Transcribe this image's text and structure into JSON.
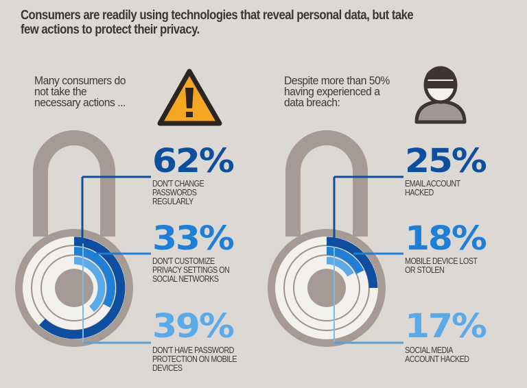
{
  "headline": {
    "line1": "Consumers are readily using technologies that reveal personal data, but take",
    "line2": "few actions to protect their privacy."
  },
  "colors": {
    "background": "#dcd8d3",
    "lock_gray": "#a59a94",
    "dial_white": "#f3f1ee",
    "dark_blue": "#0d4f9e",
    "mid_blue": "#1f7fd6",
    "light_blue": "#5aa9e8",
    "warning_yellow": "#f5a623",
    "text_dark": "#3b3532"
  },
  "left_panel": {
    "intro_lines": [
      "Many consumers do",
      "not take the",
      "necessary actions ..."
    ],
    "icon": "warning-triangle-icon",
    "stats": [
      {
        "value": "62%",
        "caption_lines": [
          "DON'T CHANGE",
          "PASSWORDS",
          "REGULARLY"
        ],
        "color": "#0d4f9e"
      },
      {
        "value": "33%",
        "caption_lines": [
          "DON'T CUSTOMIZE",
          "PRIVACY SETTINGS ON",
          "SOCIAL NETWORKS"
        ],
        "color": "#1f7fd6"
      },
      {
        "value": "39%",
        "caption_lines": [
          "DON'T HAVE PASSWORD",
          "PROTECTION ON MOBILE",
          "DEVICES"
        ],
        "color": "#5aa9e8"
      }
    ]
  },
  "right_panel": {
    "intro_lines": [
      "Despite more than 50%",
      "having experienced a",
      "data breach:"
    ],
    "icon": "hacker-person-icon",
    "stats": [
      {
        "value": "25%",
        "caption_lines": [
          "EMAIL ACCOUNT",
          "HACKED"
        ],
        "color": "#0d4f9e"
      },
      {
        "value": "18%",
        "caption_lines": [
          "MOBILE DEVICE LOST",
          "OR STOLEN"
        ],
        "color": "#1f7fd6"
      },
      {
        "value": "17%",
        "caption_lines": [
          "SOCIAL MEDIA",
          "ACCOUNT HACKED"
        ],
        "color": "#5aa9e8"
      }
    ]
  },
  "chart_data": [
    {
      "type": "radial-bar",
      "title": "Many consumers do not take the necessary actions ...",
      "categories": [
        "Don't change passwords regularly",
        "Don't customize privacy settings on social networks",
        "Don't have password protection on mobile devices"
      ],
      "values": [
        62,
        33,
        39
      ],
      "unit": "%",
      "ylim": [
        0,
        100
      ]
    },
    {
      "type": "radial-bar",
      "title": "Despite more than 50% having experienced a data breach:",
      "categories": [
        "Email account hacked",
        "Mobile device lost or stolen",
        "Social media account hacked"
      ],
      "values": [
        25,
        18,
        17
      ],
      "unit": "%",
      "ylim": [
        0,
        100
      ]
    }
  ]
}
